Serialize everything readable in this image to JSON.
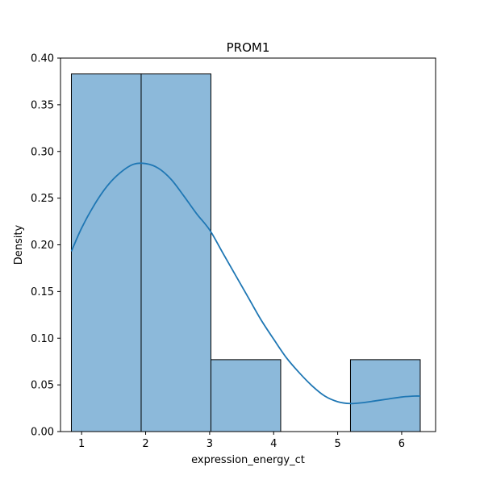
{
  "chart_data": {
    "type": "histogram",
    "title": "PROM1",
    "xlabel": "expression_energy_ct",
    "ylabel": "Density",
    "xlim": [
      0.67,
      6.53
    ],
    "ylim": [
      0,
      0.4
    ],
    "xticks": [
      1,
      2,
      3,
      4,
      5,
      6
    ],
    "yticks": [
      0.0,
      0.05,
      0.1,
      0.15,
      0.2,
      0.25,
      0.3,
      0.35,
      0.4
    ],
    "bins": [
      {
        "x0": 0.84,
        "x1": 1.93,
        "density": 0.383
      },
      {
        "x0": 1.93,
        "x1": 3.02,
        "density": 0.383
      },
      {
        "x0": 3.02,
        "x1": 4.11,
        "density": 0.077
      },
      {
        "x0": 4.11,
        "x1": 5.2,
        "density": 0.0
      },
      {
        "x0": 5.2,
        "x1": 6.29,
        "density": 0.077
      }
    ],
    "kde": {
      "x": [
        0.84,
        1.0,
        1.2,
        1.4,
        1.6,
        1.8,
        2.0,
        2.2,
        2.4,
        2.6,
        2.8,
        3.0,
        3.2,
        3.4,
        3.6,
        3.8,
        4.0,
        4.2,
        4.4,
        4.6,
        4.8,
        5.0,
        5.2,
        5.4,
        5.6,
        5.8,
        6.0,
        6.2,
        6.29
      ],
      "y": [
        0.193,
        0.218,
        0.243,
        0.263,
        0.277,
        0.286,
        0.287,
        0.282,
        0.27,
        0.252,
        0.233,
        0.216,
        0.192,
        0.168,
        0.144,
        0.12,
        0.099,
        0.079,
        0.063,
        0.049,
        0.038,
        0.032,
        0.03,
        0.031,
        0.033,
        0.035,
        0.037,
        0.038,
        0.038
      ]
    },
    "colors": {
      "bar_fill": "#8cb9da",
      "bar_edge": "#000000",
      "kde_line": "#1f77b4"
    },
    "grid": false,
    "legend": "none"
  }
}
